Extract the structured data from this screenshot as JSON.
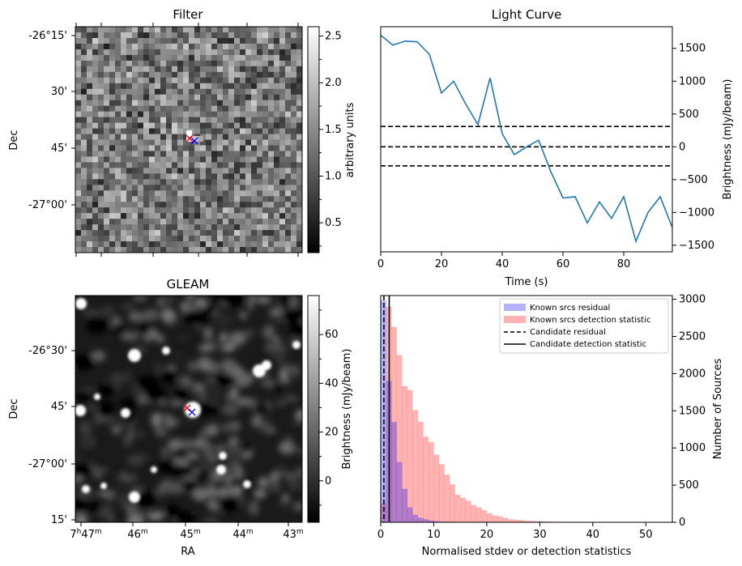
{
  "chart_data": [
    {
      "type": "heatmap",
      "title": "Filter",
      "xlabel": "",
      "ylabel": "Dec",
      "ytick_labels": [
        "-26°15'",
        "30'",
        "45'",
        "-27°00'"
      ],
      "colorbar": {
        "label": "arbitrary units",
        "range": [
          0.18,
          2.6
        ],
        "ticks": [
          "0.5",
          "1.0",
          "1.5",
          "2.0",
          "2.5"
        ]
      },
      "markers": [
        {
          "color": "#ff0000",
          "symbol": "x"
        },
        {
          "color": "#0000ff",
          "symbol": "x"
        }
      ]
    },
    {
      "type": "line",
      "title": "Light Curve",
      "xlabel": "Time (s)",
      "ylabel": "Brightness (mJy/beam)",
      "xlim": [
        0,
        96
      ],
      "ylim": [
        -1600,
        1830
      ],
      "xticks": [
        0,
        20,
        40,
        60,
        80
      ],
      "yticks": [
        -1500,
        -1000,
        -500,
        0,
        500,
        1000,
        1500
      ],
      "series": [
        {
          "color": "#1f77b4",
          "x": [
            0,
            4,
            8,
            12,
            16,
            20,
            24,
            28,
            32,
            36,
            40,
            44,
            48,
            52,
            56,
            60,
            64,
            68,
            72,
            76,
            80,
            84,
            88,
            92,
            96
          ],
          "y": [
            1700,
            1550,
            1610,
            1600,
            1410,
            820,
            1000,
            650,
            340,
            1050,
            200,
            -120,
            0,
            100,
            -380,
            -780,
            -760,
            -1160,
            -840,
            -1090,
            -760,
            -1440,
            -1000,
            -760,
            -1230
          ]
        }
      ],
      "hlines": [
        {
          "y": 310,
          "style": "dashed"
        },
        {
          "y": 0,
          "style": "dashed"
        },
        {
          "y": -290,
          "style": "dashed"
        }
      ]
    },
    {
      "type": "heatmap",
      "title": "GLEAM",
      "xlabel": "RA",
      "ylabel": "Dec",
      "xtick_labels": [
        {
          "main": "7",
          "sup1": "h",
          "mid": "47",
          "sup2": "m"
        },
        {
          "main": "",
          "sup1": "",
          "mid": "46",
          "sup2": "m"
        },
        {
          "main": "",
          "sup1": "",
          "mid": "45",
          "sup2": "m"
        },
        {
          "main": "",
          "sup1": "",
          "mid": "44",
          "sup2": "m"
        },
        {
          "main": "",
          "sup1": "",
          "mid": "43",
          "sup2": "m"
        }
      ],
      "ytick_labels": [
        "-26°30'",
        "45'",
        "-27°00'",
        "15'"
      ],
      "colorbar": {
        "label": "Brightness (mJy/beam)",
        "range": [
          -17,
          76
        ],
        "ticks": [
          "0",
          "20",
          "40",
          "60"
        ]
      },
      "markers": [
        {
          "color": "#ff0000",
          "symbol": "x"
        },
        {
          "color": "#0000ff",
          "symbol": "x"
        }
      ]
    },
    {
      "type": "bar",
      "title": "",
      "xlabel": "Normalised stdev or detection statistics",
      "ylabel": "Number of Sources",
      "xlim": [
        0,
        55
      ],
      "ylim": [
        0,
        3050
      ],
      "xticks": [
        0,
        10,
        20,
        30,
        40,
        50
      ],
      "yticks": [
        0,
        500,
        1000,
        1500,
        2000,
        2500,
        3000
      ],
      "legend": "top-right",
      "bin_width": 1,
      "series": [
        {
          "name": "Known srcs residual",
          "color": "#0000ff",
          "alpha": 0.3,
          "bin_start": 0,
          "values": [
            2980,
            1900,
            1350,
            810,
            450,
            200,
            100,
            60,
            40,
            25,
            15,
            10,
            8,
            6,
            4,
            3,
            2,
            1
          ]
        },
        {
          "name": "Known srcs detection statistic",
          "color": "#ff0000",
          "alpha": 0.3,
          "bin_start": 0,
          "values": [
            250,
            2900,
            2630,
            2250,
            1830,
            1780,
            1510,
            1350,
            1150,
            1080,
            910,
            780,
            640,
            510,
            370,
            330,
            290,
            230,
            200,
            160,
            120,
            90,
            80,
            60,
            40,
            35,
            30,
            20,
            18,
            15,
            12,
            10,
            8,
            7,
            6,
            5,
            4,
            3,
            2,
            2,
            2,
            1,
            1,
            1,
            1,
            0,
            0,
            0,
            0,
            1
          ]
        }
      ],
      "vlines": [
        {
          "name": "Candidate residual",
          "x": 0.6,
          "style": "dashed"
        },
        {
          "name": "Candidate detection statistic",
          "x": 1.6,
          "style": "solid"
        }
      ]
    }
  ]
}
